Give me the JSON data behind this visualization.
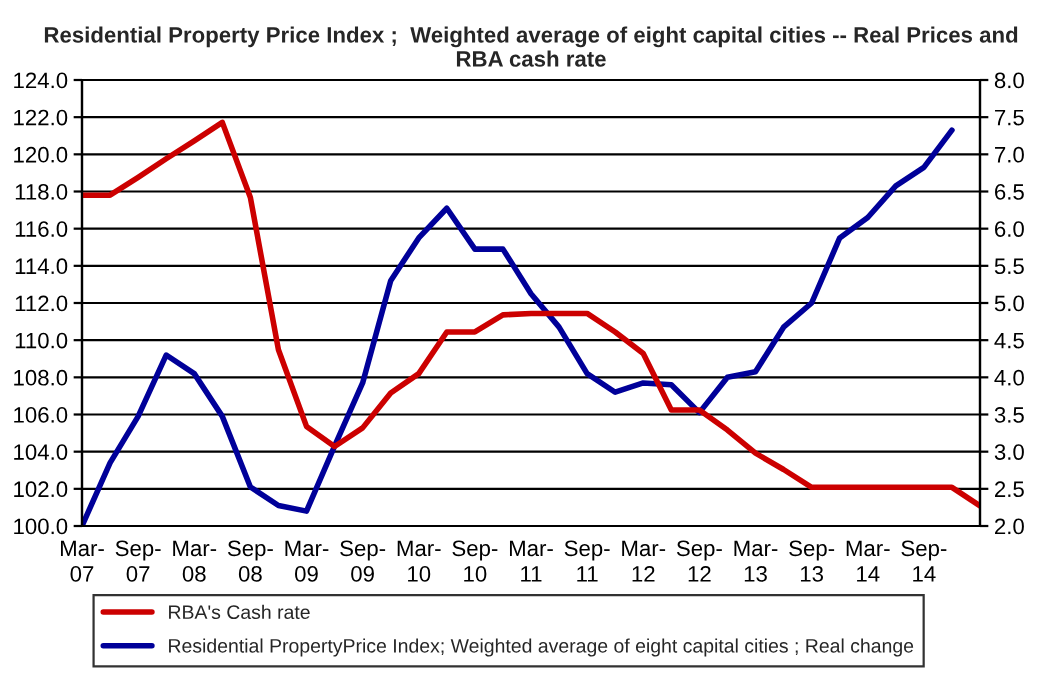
{
  "chart_data": {
    "type": "line",
    "title": "Residential Property Price Index ;  Weighted average of eight capital cities -- Real Prices and RBA cash rate",
    "categories": [
      "Mar-\n07",
      null,
      "Sep-\n07",
      null,
      "Mar-\n08",
      null,
      "Sep-\n08",
      null,
      "Mar-\n09",
      null,
      "Sep-\n09",
      null,
      "Mar-\n10",
      null,
      "Sep-\n10",
      null,
      "Mar-\n11",
      null,
      "Sep-\n11",
      null,
      "Mar-\n12",
      null,
      "Sep-\n12",
      null,
      "Mar-\n13",
      null,
      "Sep-\n13",
      null,
      "Mar-\n14",
      null,
      "Sep-\n14",
      null,
      null
    ],
    "series": [
      {
        "name": "RBA's Cash rate",
        "color": "#cc0000",
        "axis": "y2",
        "values": [
          6.45,
          6.45,
          6.69,
          6.94,
          7.18,
          7.43,
          6.42,
          4.37,
          3.34,
          3.07,
          3.32,
          3.79,
          4.05,
          4.61,
          4.61,
          4.84,
          4.86,
          4.86,
          4.86,
          4.61,
          4.32,
          3.56,
          3.56,
          3.29,
          2.98,
          2.76,
          2.52,
          2.52,
          2.52,
          2.52,
          2.52,
          2.52,
          2.27
        ]
      },
      {
        "name": "Residential PropertyPrice Index; Weighted average of eight capital cities ; Real change",
        "color": "#000099",
        "values": [
          100.0,
          103.4,
          105.9,
          109.2,
          108.2,
          105.9,
          102.1,
          101.1,
          100.8,
          104.3,
          107.7,
          113.2,
          115.5,
          117.1,
          114.9,
          114.9,
          112.5,
          110.7,
          108.2,
          107.2,
          107.7,
          107.6,
          106.1,
          108.0,
          108.3,
          110.7,
          112.0,
          115.5,
          116.6,
          118.3,
          119.3,
          121.3,
          null
        ]
      }
    ],
    "ylim": [
      100,
      124
    ],
    "yticks": [
      {
        "value": 100,
        "label": "100.0"
      },
      {
        "value": 102,
        "label": "102.0"
      },
      {
        "value": 104,
        "label": "104.0"
      },
      {
        "value": 106,
        "label": "106.0"
      },
      {
        "value": 108,
        "label": "108.0"
      },
      {
        "value": 110,
        "label": "110.0"
      },
      {
        "value": 112,
        "label": "112.0"
      },
      {
        "value": 114,
        "label": "114.0"
      },
      {
        "value": 116,
        "label": "116.0"
      },
      {
        "value": 118,
        "label": "118.0"
      },
      {
        "value": 120,
        "label": "120.0"
      },
      {
        "value": 122,
        "label": "122.0"
      },
      {
        "value": 124,
        "label": "124.0"
      }
    ],
    "y2lim": [
      2,
      8
    ],
    "y2ticks": [
      {
        "value": 2,
        "label": "2.0"
      },
      {
        "value": 2.5,
        "label": "2.5"
      },
      {
        "value": 3,
        "label": "3.0"
      },
      {
        "value": 3.5,
        "label": "3.5"
      },
      {
        "value": 4,
        "label": "4.0"
      },
      {
        "value": 4.5,
        "label": "4.5"
      },
      {
        "value": 5,
        "label": "5.0"
      },
      {
        "value": 5.5,
        "label": "5.5"
      },
      {
        "value": 6,
        "label": "6.0"
      },
      {
        "value": 6.5,
        "label": "6.5"
      },
      {
        "value": 7,
        "label": "7.0"
      },
      {
        "value": 7.5,
        "label": "7.5"
      },
      {
        "value": 8,
        "label": "8.0"
      }
    ],
    "grid": "y",
    "legend": "bottom",
    "marker": "none",
    "line_style": "solid"
  }
}
